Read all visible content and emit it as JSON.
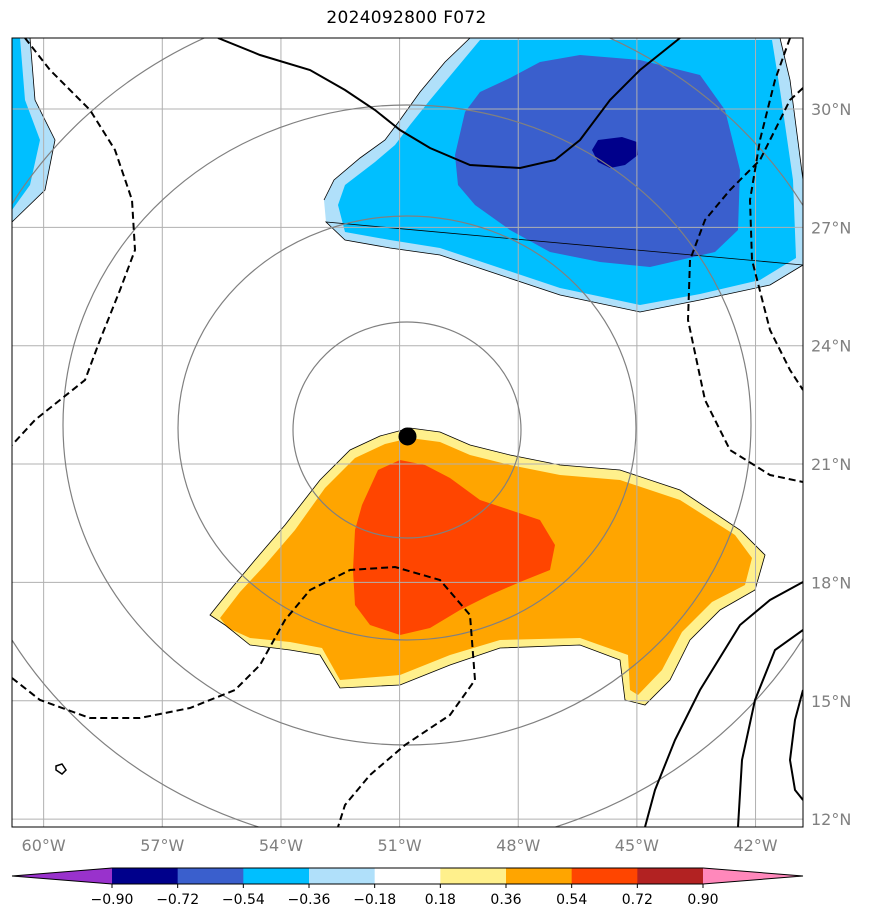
{
  "title": "2024092800 F072",
  "map": {
    "lat_range": [
      11.8,
      31.8
    ],
    "lon_range": [
      -60.8,
      -40.8
    ],
    "lat_ticks": [
      {
        "value": 12,
        "label": "12°N"
      },
      {
        "value": 15,
        "label": "15°N"
      },
      {
        "value": 18,
        "label": "18°N"
      },
      {
        "value": 21,
        "label": "21°N"
      },
      {
        "value": 24,
        "label": "24°N"
      },
      {
        "value": 27,
        "label": "27°N"
      },
      {
        "value": 30,
        "label": "30°N"
      }
    ],
    "lon_ticks": [
      {
        "value": -60,
        "label": "60°W"
      },
      {
        "value": -57,
        "label": "57°W"
      },
      {
        "value": -54,
        "label": "54°W"
      },
      {
        "value": -51,
        "label": "51°W"
      },
      {
        "value": -48,
        "label": "48°W"
      },
      {
        "value": -45,
        "label": "45°W"
      },
      {
        "value": -42,
        "label": "42°W"
      }
    ],
    "center_marker": {
      "lon": -50.8,
      "lat": 21.7
    },
    "gridlines": true,
    "colors": {
      "grid": "#b0b0b0",
      "range_rings": "#808080",
      "contour": "#000000",
      "label": "#808080"
    }
  },
  "colorbar": {
    "levels": [
      {
        "label": "−0.90"
      },
      {
        "label": "−0.72"
      },
      {
        "label": "−0.54"
      },
      {
        "label": "−0.36"
      },
      {
        "label": "−0.18"
      },
      {
        "label": "0.18"
      },
      {
        "label": "0.36"
      },
      {
        "label": "0.54"
      },
      {
        "label": "0.72"
      },
      {
        "label": "0.90"
      }
    ],
    "colors": [
      "#9932cc",
      "#00008b",
      "#3a5fcd",
      "#00bfff",
      "#b0e0fa",
      "#ffffff",
      "#fff08c",
      "#ffa500",
      "#ff4500",
      "#b22222",
      "#ff88bb"
    ]
  }
}
